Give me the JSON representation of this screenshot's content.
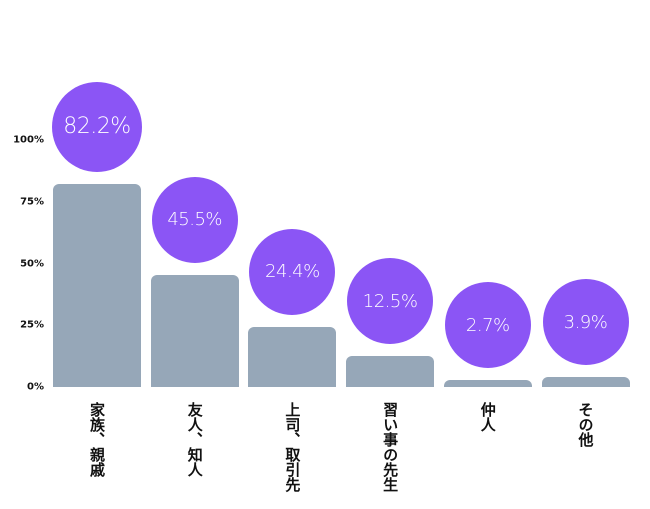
{
  "chart_data": {
    "type": "bar",
    "title": "",
    "xlabel": "",
    "ylabel": "",
    "ylim": [
      0,
      100
    ],
    "yticks": [
      "100%",
      "75%",
      "50%",
      "25%",
      "0%"
    ],
    "grid": false,
    "legend": null,
    "categories": [
      "家族、親戚",
      "友人、知人",
      "上司、取引先",
      "習い事の先生",
      "仲人",
      "その他"
    ],
    "values": [
      82.2,
      45.5,
      24.4,
      12.5,
      2.7,
      3.9
    ],
    "value_labels": [
      "82.2%",
      "45.5%",
      "24.4%",
      "12.5%",
      "2.7%",
      "3.9%"
    ],
    "colors": {
      "bar": "#96a7b8",
      "bubble": "#8b55f5",
      "bubble_text": "#ffffff"
    }
  }
}
